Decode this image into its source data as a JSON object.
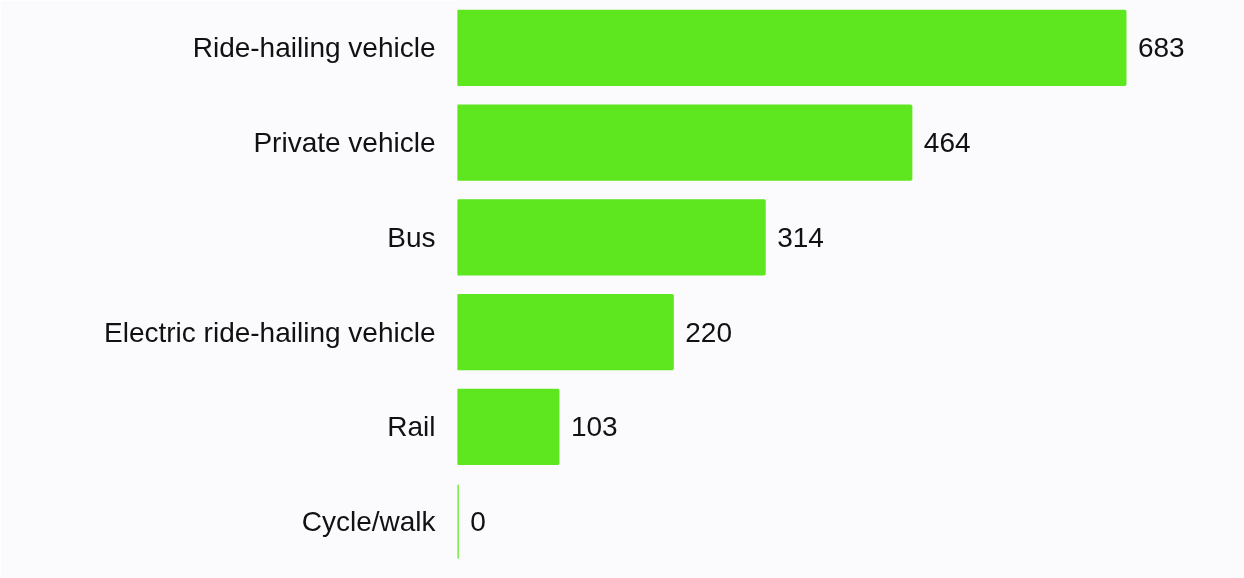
{
  "chart_data": {
    "type": "bar",
    "orientation": "horizontal",
    "categories": [
      "Ride-hailing vehicle",
      "Private vehicle",
      "Bus",
      "Electric ride-hailing vehicle",
      "Rail",
      "Cycle/walk"
    ],
    "values": [
      683,
      464,
      314,
      220,
      103,
      0
    ],
    "color": "#5ee61e",
    "data_labels": true
  }
}
